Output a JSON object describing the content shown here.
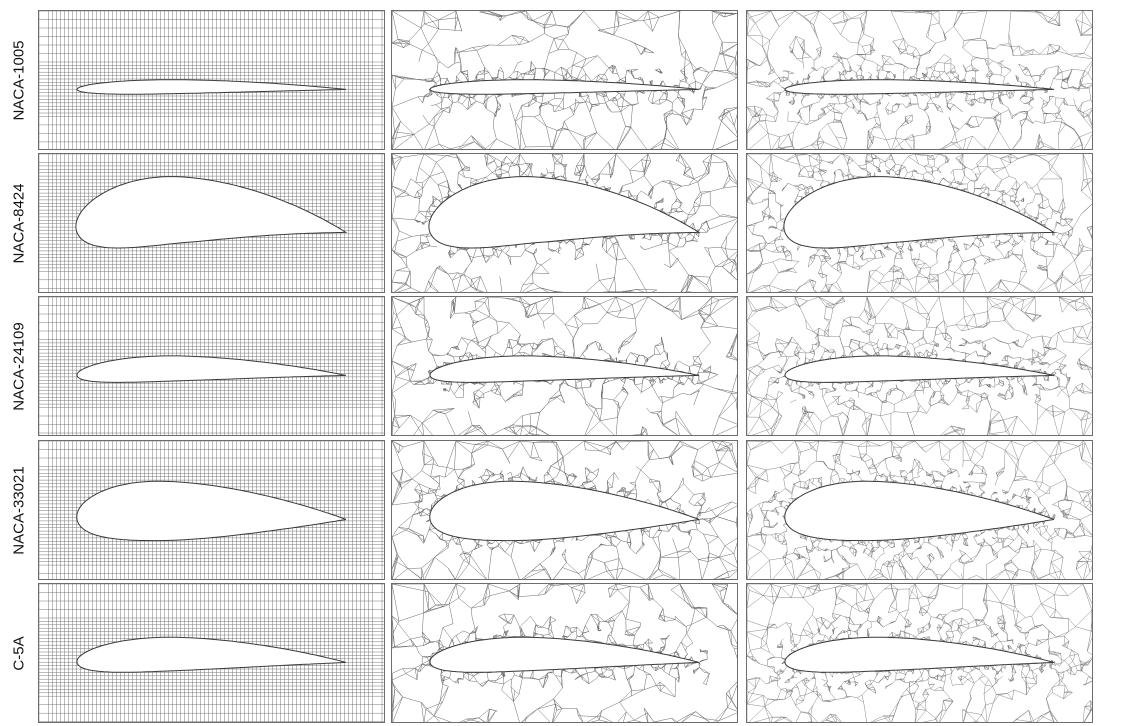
{
  "figure": {
    "columns": [
      {
        "id": "quad",
        "style": "structured-quad"
      },
      {
        "id": "coarse",
        "style": "triangle-coarse"
      },
      {
        "id": "fine",
        "style": "triangle-fine"
      }
    ],
    "rows": [
      {
        "label": "NACA-1005",
        "shape": {
          "camber": 0.01,
          "camber_pos": 0.45,
          "thickness": 0.05
        }
      },
      {
        "label": "NACA-8424",
        "shape": {
          "camber": 0.08,
          "camber_pos": 0.4,
          "thickness": 0.24
        }
      },
      {
        "label": "NACA-24109",
        "shape": {
          "camber": 0.025,
          "camber_pos": 0.4,
          "thickness": 0.09
        }
      },
      {
        "label": "NACA-33021",
        "shape": {
          "camber": 0.03,
          "camber_pos": 0.3,
          "thickness": 0.21
        }
      },
      {
        "label": "C-5A",
        "shape": {
          "camber": 0.03,
          "camber_pos": 0.4,
          "thickness": 0.12
        }
      }
    ],
    "colors": {
      "mesh_line": "#6a6a6a",
      "frame": "#6d6d6d",
      "label": "#111111"
    }
  }
}
